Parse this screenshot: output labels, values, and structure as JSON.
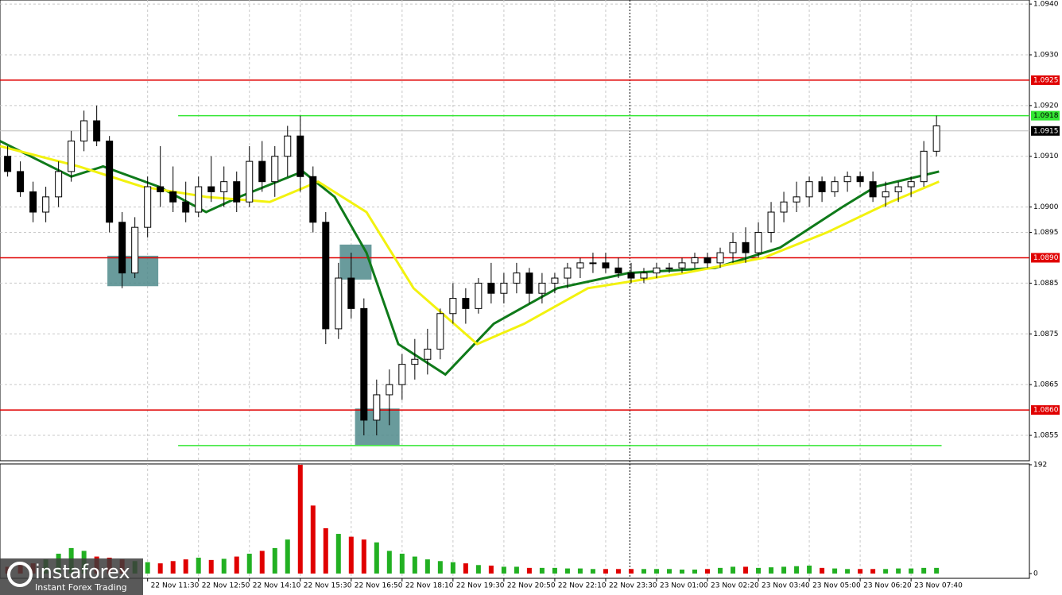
{
  "chart_data": {
    "type": "candlestick",
    "ohlc": [
      [
        1.0911,
        1.0913,
        1.0909,
        1.091
      ],
      [
        1.091,
        1.0912,
        1.0906,
        1.0907
      ],
      [
        1.0907,
        1.0909,
        1.0902,
        1.0903
      ],
      [
        1.0903,
        1.0905,
        1.0897,
        1.0899
      ],
      [
        1.0899,
        1.0904,
        1.0897,
        1.0902
      ],
      [
        1.0902,
        1.0909,
        1.09,
        1.0907
      ],
      [
        1.0907,
        1.0915,
        1.0905,
        1.0913
      ],
      [
        1.0913,
        1.0919,
        1.0911,
        1.0917
      ],
      [
        1.0917,
        1.092,
        1.0912,
        1.0913
      ],
      [
        1.0913,
        1.0914,
        1.0895,
        1.0897
      ],
      [
        1.0897,
        1.0899,
        1.0884,
        1.0887
      ],
      [
        1.0887,
        1.0898,
        1.0886,
        1.0896
      ],
      [
        1.0896,
        1.0906,
        1.0894,
        1.0904
      ],
      [
        1.0904,
        1.0912,
        1.09,
        1.0903
      ],
      [
        1.0903,
        1.0908,
        1.0899,
        1.0901
      ],
      [
        1.0901,
        1.0905,
        1.0897,
        1.0899
      ],
      [
        1.0899,
        1.0906,
        1.0898,
        1.0904
      ],
      [
        1.0904,
        1.091,
        1.0901,
        1.0903
      ],
      [
        1.0903,
        1.0908,
        1.09,
        1.0905
      ],
      [
        1.0905,
        1.0907,
        1.0899,
        1.0901
      ],
      [
        1.0901,
        1.0912,
        1.09,
        1.0909
      ],
      [
        1.0909,
        1.0913,
        1.0903,
        1.0905
      ],
      [
        1.0905,
        1.0912,
        1.0902,
        1.091
      ],
      [
        1.091,
        1.0916,
        1.0906,
        1.0914
      ],
      [
        1.0914,
        1.0918,
        1.0903,
        1.0906
      ],
      [
        1.0906,
        1.0908,
        1.0895,
        1.0897
      ],
      [
        1.0897,
        1.0899,
        1.0873,
        1.0876
      ],
      [
        1.0876,
        1.0889,
        1.0874,
        1.0886
      ],
      [
        1.0886,
        1.0891,
        1.0878,
        1.088
      ],
      [
        1.088,
        1.0882,
        1.0855,
        1.0858
      ],
      [
        1.0858,
        1.0866,
        1.0855,
        1.0863
      ],
      [
        1.0863,
        1.0868,
        1.0857,
        1.0865
      ],
      [
        1.0865,
        1.0871,
        1.0862,
        1.0869
      ],
      [
        1.0869,
        1.0874,
        1.0866,
        1.087
      ],
      [
        1.087,
        1.0876,
        1.0867,
        1.0872
      ],
      [
        1.0872,
        1.088,
        1.087,
        1.0879
      ],
      [
        1.0879,
        1.0885,
        1.0877,
        1.0882
      ],
      [
        1.0882,
        1.0884,
        1.0877,
        1.088
      ],
      [
        1.088,
        1.0886,
        1.0879,
        1.0885
      ],
      [
        1.0885,
        1.0889,
        1.0881,
        1.0883
      ],
      [
        1.0883,
        1.0887,
        1.0881,
        1.0885
      ],
      [
        1.0885,
        1.0889,
        1.0883,
        1.0887
      ],
      [
        1.0887,
        1.0888,
        1.0881,
        1.0883
      ],
      [
        1.0883,
        1.0887,
        1.0881,
        1.0885
      ],
      [
        1.0885,
        1.0887,
        1.0883,
        1.0886
      ],
      [
        1.0886,
        1.0889,
        1.0884,
        1.0888
      ],
      [
        1.0888,
        1.089,
        1.0886,
        1.0889
      ],
      [
        1.0889,
        1.0891,
        1.0887,
        1.0889
      ],
      [
        1.0889,
        1.0891,
        1.0887,
        1.0888
      ],
      [
        1.0888,
        1.089,
        1.0886,
        1.0887
      ],
      [
        1.0887,
        1.0889,
        1.0885,
        1.0886
      ],
      [
        1.0886,
        1.0888,
        1.0885,
        1.0887
      ],
      [
        1.0887,
        1.0889,
        1.0886,
        1.0888
      ],
      [
        1.0888,
        1.0889,
        1.0887,
        1.0888
      ],
      [
        1.0888,
        1.089,
        1.0887,
        1.0889
      ],
      [
        1.0889,
        1.0891,
        1.0888,
        1.089
      ],
      [
        1.089,
        1.0891,
        1.0888,
        1.0889
      ],
      [
        1.0889,
        1.0892,
        1.0888,
        1.0891
      ],
      [
        1.0891,
        1.0895,
        1.0889,
        1.0893
      ],
      [
        1.0893,
        1.0896,
        1.0889,
        1.0891
      ],
      [
        1.0891,
        1.0897,
        1.089,
        1.0895
      ],
      [
        1.0895,
        1.0901,
        1.0893,
        1.0899
      ],
      [
        1.0899,
        1.0903,
        1.0897,
        1.0901
      ],
      [
        1.0901,
        1.0905,
        1.0899,
        1.0902
      ],
      [
        1.0902,
        1.0906,
        1.09,
        1.0905
      ],
      [
        1.0905,
        1.0906,
        1.0901,
        1.0903
      ],
      [
        1.0903,
        1.0906,
        1.0902,
        1.0905
      ],
      [
        1.0905,
        1.0907,
        1.0903,
        1.0906
      ],
      [
        1.0906,
        1.0907,
        1.0904,
        1.0905
      ],
      [
        1.0905,
        1.0907,
        1.0901,
        1.0902
      ],
      [
        1.0902,
        1.0905,
        1.09,
        1.0903
      ],
      [
        1.0903,
        1.0905,
        1.0901,
        1.0904
      ],
      [
        1.0904,
        1.0906,
        1.0902,
        1.0905
      ],
      [
        1.0905,
        1.0913,
        1.0904,
        1.0911
      ],
      [
        1.0911,
        1.0918,
        1.091,
        1.0916
      ]
    ],
    "up_color": "#ffffff",
    "down_color": "#000000",
    "xlim": [
      0.4,
      81.3
    ],
    "ylim": [
      1.085,
      1.09408
    ],
    "xticks": [
      {
        "value": 12,
        "label": "22 Nov 11:30"
      },
      {
        "value": 16,
        "label": "22 Nov 12:50"
      },
      {
        "value": 20,
        "label": "22 Nov 14:10"
      },
      {
        "value": 24,
        "label": "22 Nov 15:30"
      },
      {
        "value": 28,
        "label": "22 Nov 16:50"
      },
      {
        "value": 32,
        "label": "22 Nov 18:10"
      },
      {
        "value": 36,
        "label": "22 Nov 19:30"
      },
      {
        "value": 40,
        "label": "22 Nov 20:50"
      },
      {
        "value": 44,
        "label": "22 Nov 22:10"
      },
      {
        "value": 48,
        "label": "22 Nov 23:30"
      },
      {
        "value": 52,
        "label": "23 Nov 01:00"
      },
      {
        "value": 56,
        "label": "23 Nov 02:20"
      },
      {
        "value": 60,
        "label": "23 Nov 03:40"
      },
      {
        "value": 64,
        "label": "23 Nov 05:00"
      },
      {
        "value": 68,
        "label": "23 Nov 06:20"
      },
      {
        "value": 72,
        "label": "23 Nov 07:40"
      }
    ],
    "yticks": [
      {
        "value": 1.094,
        "label": "1.0940"
      },
      {
        "value": 1.093,
        "label": "1.0930"
      },
      {
        "value": 1.092,
        "label": "1.0920"
      },
      {
        "value": 1.091,
        "label": "1.0910"
      },
      {
        "value": 1.09,
        "label": "1.0900"
      },
      {
        "value": 1.0895,
        "label": "1.0895"
      },
      {
        "value": 1.0885,
        "label": "1.0885"
      },
      {
        "value": 1.0875,
        "label": "1.0875"
      },
      {
        "value": 1.0865,
        "label": "1.0865"
      },
      {
        "value": 1.0855,
        "label": "1.0855"
      }
    ],
    "grid": true,
    "grid_color": "#c8c8c8",
    "series": [
      {
        "color": "#0f7a1a",
        "x": [
          0.4,
          6,
          8.5,
          12.9,
          16.6,
          19.2,
          24.2,
          26.7,
          29.2,
          31.7,
          35.4,
          39.2,
          44.2,
          49.8,
          56.6,
          61.7,
          66.6,
          69.2,
          74.2
        ],
        "values": [
          1.0913,
          1.0906,
          1.0908,
          1.0904,
          1.0899,
          1.0902,
          1.0907,
          1.0902,
          1.0891,
          1.0873,
          1.0867,
          1.0877,
          1.0884,
          1.0887,
          1.0888,
          1.0892,
          1.09,
          1.0904,
          1.0907
        ]
      },
      {
        "color": "#f2f20f",
        "x": [
          0.4,
          6.6,
          11.6,
          16.6,
          21.6,
          25.4,
          29.2,
          32.9,
          37.9,
          41.6,
          46.6,
          54.2,
          60.4,
          65.4,
          70.4,
          74.2
        ],
        "values": [
          1.0912,
          1.0908,
          1.0904,
          1.0902,
          1.0901,
          1.0905,
          1.0899,
          1.0884,
          1.0873,
          1.0877,
          1.0884,
          1.0887,
          1.089,
          1.0895,
          1.0901,
          1.0905
        ]
      }
    ],
    "levels": [
      {
        "value": 1.0925,
        "label": "1.0925",
        "color": "#e00000"
      },
      {
        "value": 1.0918,
        "label": "1.0918",
        "color": "#33e633",
        "from": 14.4
      },
      {
        "value": 1.0915,
        "label": "1.0915",
        "color": "#000000"
      },
      {
        "value": 1.089,
        "label": "1.0890",
        "color": "#e00000"
      },
      {
        "value": 1.086,
        "label": "1.0860",
        "color": "#e00000"
      },
      {
        "value": 1.0853,
        "color": "#33e633",
        "from": 14.4,
        "to": 74.4
      }
    ],
    "zones": [
      {
        "x": [
          8.84,
          12.84
        ],
        "y": [
          1.08844,
          1.08904
        ]
      },
      {
        "x": [
          27.1,
          29.6
        ],
        "y": [
          1.08857,
          1.08926
        ]
      },
      {
        "x": [
          28.3,
          31.8
        ],
        "y": [
          1.08531,
          1.08603
        ]
      }
    ],
    "zone_color": "#4f8a8b",
    "separators": [
      49.9
    ],
    "volume": {
      "values": [
        10,
        12,
        15,
        18,
        25,
        35,
        45,
        40,
        30,
        28,
        25,
        22,
        20,
        18,
        22,
        25,
        28,
        24,
        26,
        30,
        35,
        40,
        45,
        60,
        192,
        120,
        80,
        70,
        65,
        60,
        55,
        40,
        35,
        30,
        25,
        22,
        20,
        18,
        15,
        14,
        12,
        12,
        10,
        10,
        10,
        9,
        9,
        8,
        8,
        8,
        8,
        8,
        8,
        8,
        7,
        7,
        8,
        10,
        12,
        12,
        10,
        11,
        12,
        13,
        14,
        10,
        9,
        8,
        8,
        8,
        8,
        9,
        9,
        10,
        10
      ],
      "ylim": [
        0,
        192
      ],
      "yticks": [
        192,
        0
      ],
      "up_color": "#22b022",
      "down_color": "#e00000"
    },
    "logo": {
      "name": "instaforex",
      "tagline": "Instant Forex Trading"
    }
  }
}
